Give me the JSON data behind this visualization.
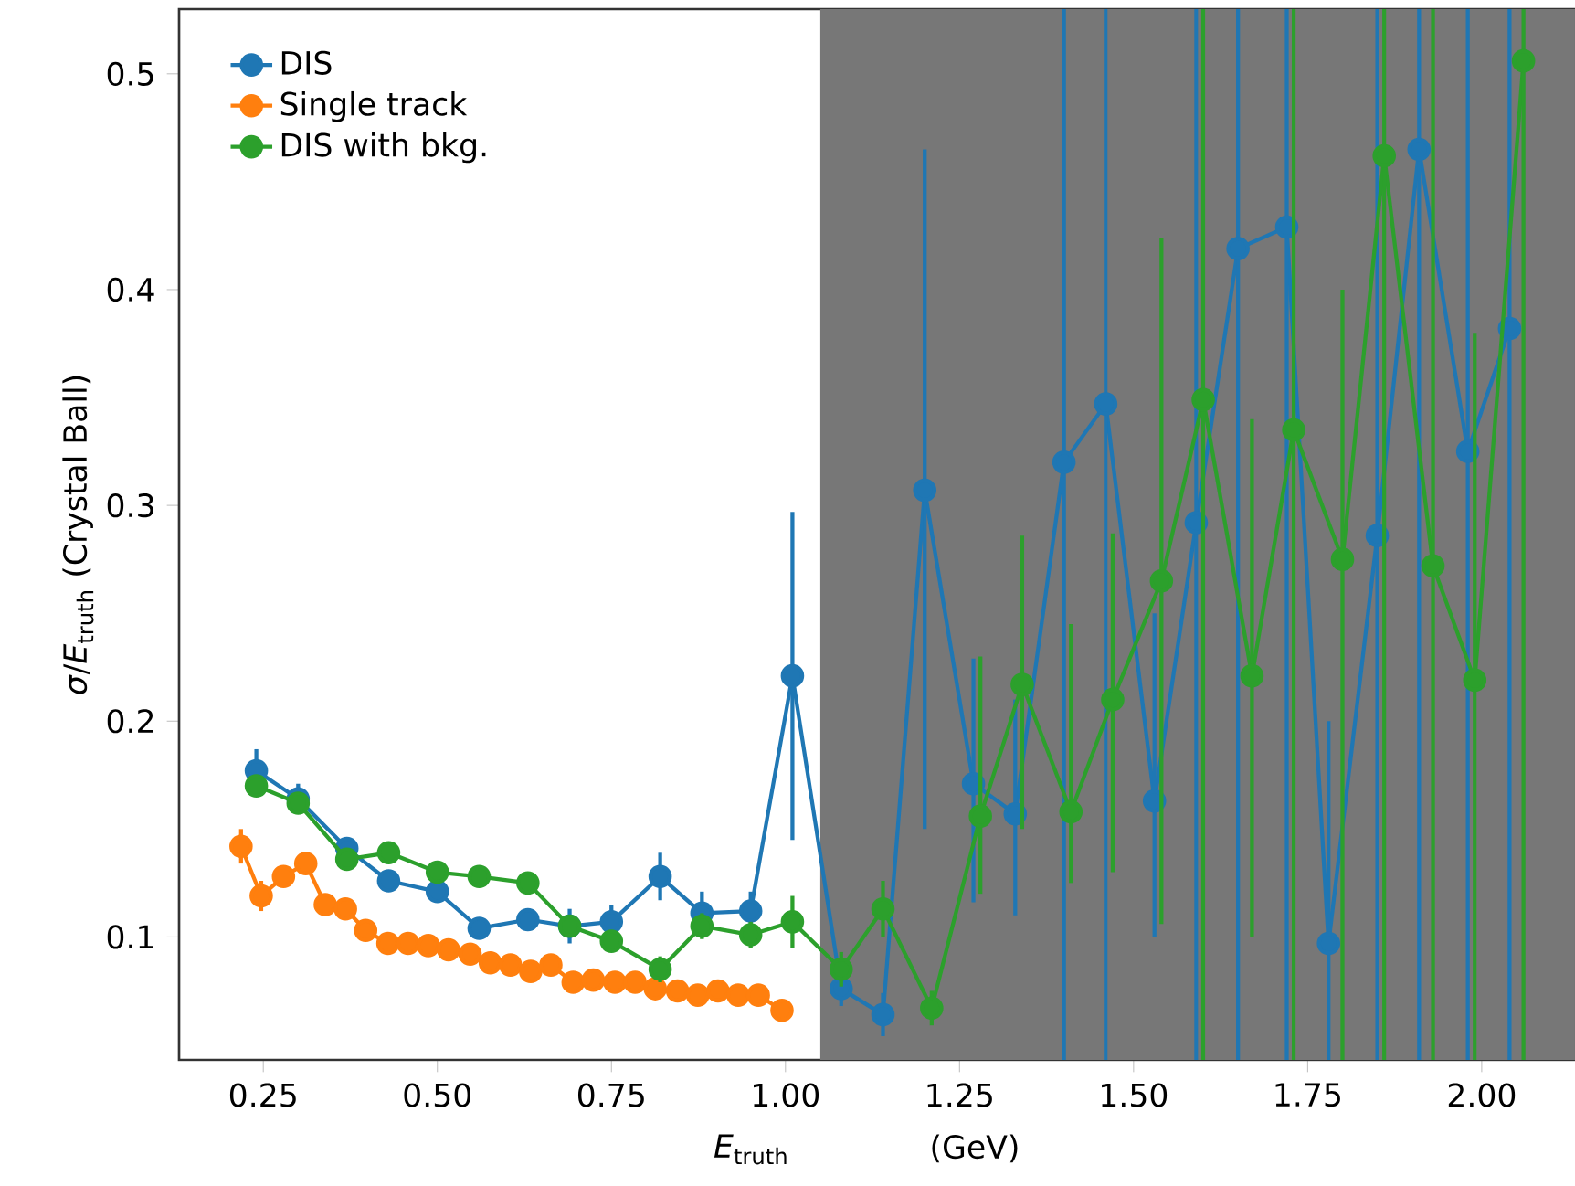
{
  "chart_data": {
    "type": "line",
    "xlabel": "*E*$_{truth}$",
    "ylabel": "*σ*/*E*$_{truth}$ (Crystal Ball)",
    "annotations": [
      "(GeV)"
    ],
    "xlim": [
      0.129,
      2.134
    ],
    "ylim": [
      0.043,
      0.53
    ],
    "xticks": [
      0.25,
      {
        "value": 0.5,
        "label": "0.50"
      },
      0.75,
      {
        "value": 1.0,
        "label": "1.00"
      },
      1.25,
      {
        "value": 1.5,
        "label": "1.50"
      },
      1.75,
      {
        "value": 2.0,
        "label": "2.00"
      }
    ],
    "yticks": [
      0.1,
      0.2,
      0.3,
      0.4,
      0.5
    ],
    "legend": "top left",
    "marker": "circle",
    "grid": false,
    "bands": [
      {
        "axis": "x",
        "from": 1.05,
        "to": 2.134,
        "color": "#777777"
      }
    ],
    "series": [
      {
        "name": "DIS",
        "color": "#1f77b4",
        "x": [
          0.24,
          0.3,
          0.37,
          0.43,
          0.5,
          0.56,
          0.63,
          0.69,
          0.75,
          0.82,
          0.88,
          0.95,
          1.01,
          1.08,
          1.14,
          1.2,
          1.27,
          1.33,
          1.4,
          1.46,
          1.53,
          1.59,
          1.65,
          1.72,
          1.78,
          1.85,
          1.91,
          1.98,
          2.04
        ],
        "values": [
          0.177,
          0.164,
          0.141,
          0.126,
          0.121,
          0.104,
          0.108,
          0.105,
          0.107,
          0.128,
          0.111,
          0.112,
          0.221,
          0.076,
          0.064,
          0.307,
          0.171,
          0.157,
          0.32,
          0.347,
          0.163,
          0.292,
          0.419,
          0.429,
          0.097,
          0.286,
          0.465,
          0.325,
          0.382
        ],
        "errors": [
          0.01,
          0.007,
          0.005,
          0.005,
          0.005,
          0.004,
          0.005,
          0.008,
          0.008,
          0.011,
          0.01,
          0.009,
          0.076,
          0.008,
          0.01,
          [
            0.15,
            0.465
          ],
          [
            0.116,
            0.229
          ],
          [
            0.11,
            0.21
          ],
          [
            0.043,
            0.53
          ],
          [
            0.043,
            0.53
          ],
          [
            0.1,
            0.25
          ],
          [
            0.043,
            0.53
          ],
          [
            0.043,
            0.53
          ],
          [
            0.043,
            0.53
          ],
          [
            0.043,
            0.2
          ],
          [
            0.043,
            0.53
          ],
          [
            0.043,
            0.53
          ],
          [
            0.043,
            0.53
          ],
          [
            0.043,
            0.53
          ]
        ]
      },
      {
        "name": "Single track",
        "color": "#ff7f0e",
        "x": [
          0.218,
          0.247,
          0.279,
          0.311,
          0.339,
          0.368,
          0.397,
          0.429,
          0.458,
          0.487,
          0.516,
          0.547,
          0.576,
          0.605,
          0.634,
          0.663,
          0.695,
          0.724,
          0.755,
          0.784,
          0.813,
          0.845,
          0.874,
          0.903,
          0.932,
          0.961,
          0.995
        ],
        "values": [
          0.142,
          0.119,
          0.128,
          0.134,
          0.115,
          0.113,
          0.103,
          0.097,
          0.097,
          0.096,
          0.094,
          0.092,
          0.088,
          0.087,
          0.084,
          0.087,
          0.079,
          0.08,
          0.079,
          0.079,
          0.076,
          0.075,
          0.073,
          0.075,
          0.073,
          0.073,
          0.066
        ],
        "errors": [
          0.008,
          0.007,
          0.005,
          0.004,
          null,
          null,
          null,
          null,
          null,
          null,
          null,
          null,
          null,
          null,
          null,
          null,
          null,
          null,
          null,
          null,
          null,
          null,
          null,
          null,
          null,
          null,
          null
        ]
      },
      {
        "name": "DIS with bkg.",
        "color": "#2ca02c",
        "x": [
          0.24,
          0.3,
          0.37,
          0.43,
          0.5,
          0.56,
          0.63,
          0.69,
          0.75,
          0.82,
          0.88,
          0.95,
          1.01,
          1.08,
          1.14,
          1.21,
          1.28,
          1.34,
          1.41,
          1.47,
          1.54,
          1.6,
          1.67,
          1.73,
          1.8,
          1.86,
          1.93,
          1.99,
          2.06
        ],
        "values": [
          0.17,
          0.162,
          0.136,
          0.139,
          0.13,
          0.128,
          0.125,
          0.105,
          0.098,
          0.085,
          0.105,
          0.101,
          0.107,
          0.085,
          0.113,
          0.067,
          0.156,
          0.217,
          0.158,
          0.21,
          0.265,
          0.349,
          0.221,
          0.335,
          0.275,
          0.462,
          0.272,
          0.219,
          0.506
        ],
        "errors": [
          0.005,
          0.005,
          0.004,
          0.004,
          0.004,
          0.004,
          0.004,
          0.004,
          0.005,
          0.006,
          0.006,
          0.006,
          0.012,
          0.008,
          0.013,
          0.008,
          [
            0.12,
            0.23
          ],
          [
            0.15,
            0.286
          ],
          [
            0.125,
            0.245
          ],
          [
            0.13,
            0.287
          ],
          [
            0.106,
            0.424
          ],
          [
            0.043,
            0.53
          ],
          [
            0.1,
            0.34
          ],
          [
            0.043,
            0.53
          ],
          [
            0.043,
            0.4
          ],
          [
            0.043,
            0.53
          ],
          [
            0.043,
            0.53
          ],
          [
            0.043,
            0.38
          ],
          [
            0.043,
            0.53
          ]
        ]
      }
    ]
  }
}
